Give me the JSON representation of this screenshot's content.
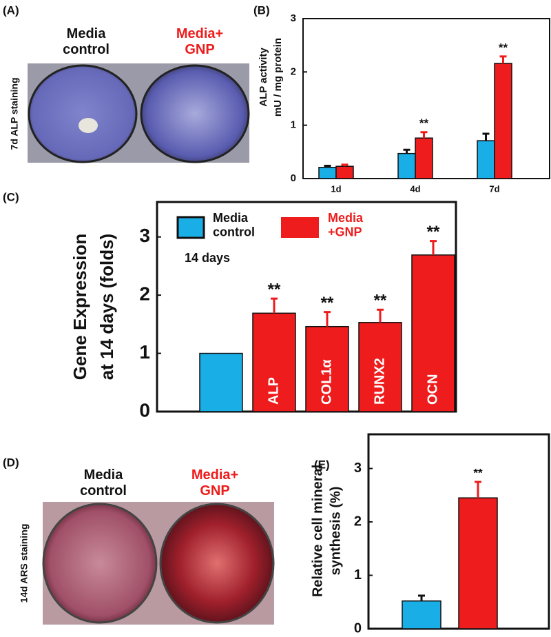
{
  "panels": {
    "A": {
      "label": "(A)",
      "left": "Media control",
      "right": "Media+ GNP",
      "side": "7d ALP staining"
    },
    "D": {
      "label": "(D)",
      "left": "Media control",
      "right": "Media+ GNP",
      "side": "14d ARS staining"
    },
    "B": {
      "label": "(B)"
    },
    "C": {
      "label": "(C)"
    },
    "E": {
      "label": "(E)"
    }
  },
  "chart_data": [
    {
      "type": "bar",
      "ylabel": [
        "ALP activity",
        "mU / mg protein"
      ],
      "categories": [
        "1d",
        "4d",
        "7d"
      ],
      "series": [
        {
          "color": "#1aaee6",
          "values": [
            0.21,
            0.47,
            0.71
          ],
          "errors": [
            0.03,
            0.07,
            0.13
          ]
        },
        {
          "color": "#ee1c1c",
          "values": [
            0.23,
            0.76,
            2.16
          ],
          "errors": [
            0.03,
            0.11,
            0.13
          ],
          "annotations": [
            null,
            "**",
            "**"
          ]
        }
      ],
      "ylim": [
        0,
        3
      ],
      "yticks": [
        0,
        1,
        2,
        3
      ]
    },
    {
      "type": "bar",
      "ylabel": [
        "Gene Expression",
        "at 14 days (folds)"
      ],
      "annotation": "14 days",
      "categories": [
        null,
        "ALP",
        "COL1α",
        "RUNX2",
        "OCN"
      ],
      "series": [
        {
          "name": "Media control",
          "color": "#1aaee6",
          "values": [
            1,
            null,
            null,
            null,
            null
          ],
          "errors": [
            null,
            null,
            null,
            null,
            null
          ]
        },
        {
          "name": "Media +GNP",
          "color": "#ee1c1c",
          "values": [
            null,
            1.69,
            1.46,
            1.53,
            2.69
          ],
          "errors": [
            null,
            0.25,
            0.25,
            0.22,
            0.24
          ],
          "annotations": [
            null,
            "**",
            "**",
            "**",
            "**"
          ]
        }
      ],
      "ylim": [
        0,
        3.6
      ],
      "yticks": [
        0,
        1,
        2,
        3
      ],
      "legend": "upper left"
    },
    {
      "type": "bar",
      "ylabel": [
        "Relative cell mineral",
        "synthesis (%)"
      ],
      "categories": [
        null,
        null
      ],
      "series": [
        {
          "color": "#1aaee6",
          "values": [
            0.52,
            null
          ],
          "errors": [
            0.1,
            null
          ]
        },
        {
          "color": "#ee1c1c",
          "values": [
            null,
            2.45
          ],
          "errors": [
            null,
            0.3
          ],
          "annotations": [
            null,
            "**"
          ]
        }
      ],
      "ylim": [
        0,
        3.64
      ],
      "yticks": [
        0,
        1,
        2,
        3
      ]
    }
  ]
}
